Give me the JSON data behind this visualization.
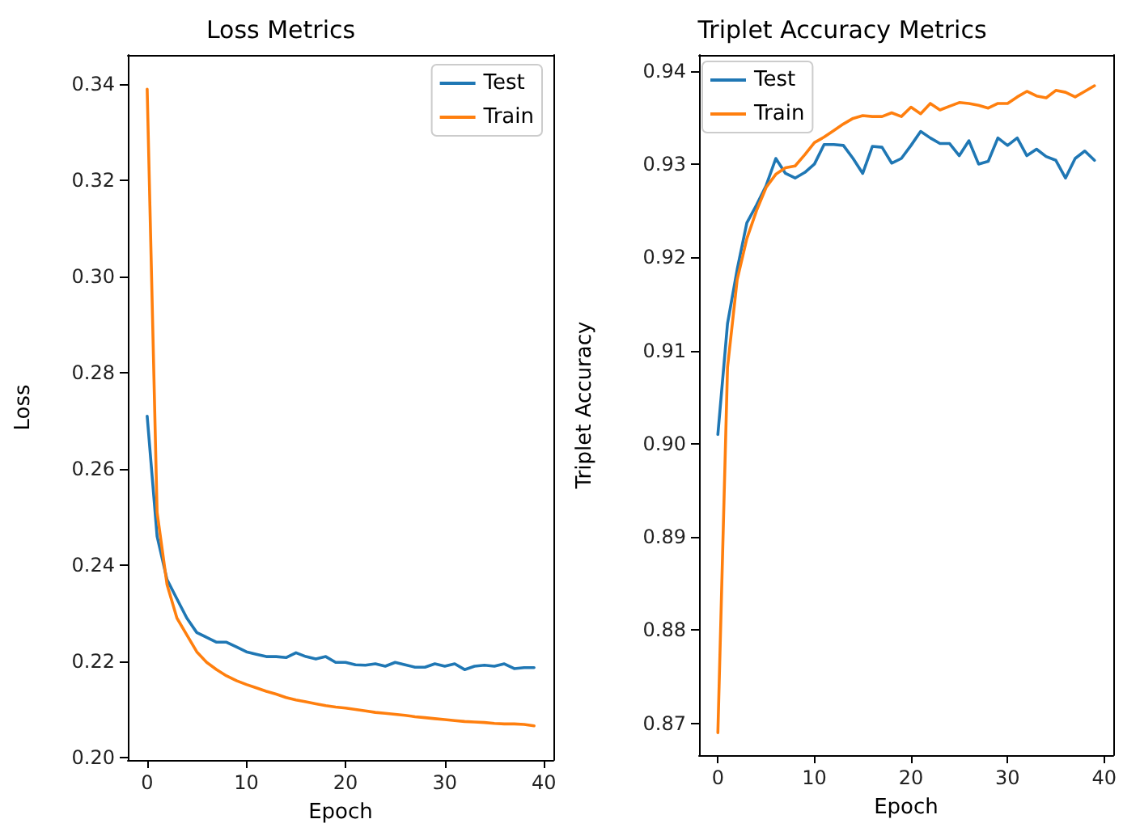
{
  "chart_data": [
    {
      "type": "line",
      "title": "Loss Metrics",
      "xlabel": "Epoch",
      "ylabel": "Loss",
      "x": [
        0,
        1,
        2,
        3,
        4,
        5,
        6,
        7,
        8,
        9,
        10,
        11,
        12,
        13,
        14,
        15,
        16,
        17,
        18,
        19,
        20,
        21,
        22,
        23,
        24,
        25,
        26,
        27,
        28,
        29,
        30,
        31,
        32,
        33,
        34,
        35,
        36,
        37,
        38,
        39
      ],
      "series": [
        {
          "name": "Test",
          "color": "#1f77b4",
          "values": [
            0.271,
            0.246,
            0.237,
            0.233,
            0.229,
            0.226,
            0.225,
            0.224,
            0.224,
            0.223,
            0.222,
            0.2215,
            0.221,
            0.221,
            0.2208,
            0.2218,
            0.221,
            0.2205,
            0.221,
            0.2198,
            0.2198,
            0.2193,
            0.2192,
            0.2195,
            0.219,
            0.2198,
            0.2193,
            0.2188,
            0.2188,
            0.2195,
            0.219,
            0.2195,
            0.2183,
            0.219,
            0.2192,
            0.219,
            0.2195,
            0.2185,
            0.2187,
            0.2187
          ]
        },
        {
          "name": "Train",
          "color": "#ff7f0e",
          "values": [
            0.339,
            0.251,
            0.236,
            0.229,
            0.2255,
            0.222,
            0.2198,
            0.2183,
            0.217,
            0.216,
            0.2152,
            0.2145,
            0.2138,
            0.2132,
            0.2125,
            0.212,
            0.2116,
            0.2112,
            0.2108,
            0.2105,
            0.2103,
            0.21,
            0.2097,
            0.2094,
            0.2092,
            0.209,
            0.2088,
            0.2085,
            0.2083,
            0.2081,
            0.2079,
            0.2077,
            0.2075,
            0.2074,
            0.2073,
            0.2071,
            0.207,
            0.207,
            0.2069,
            0.2066
          ]
        }
      ],
      "xlim": [
        -1.95,
        40.95
      ],
      "xticks": [
        0,
        10,
        20,
        30,
        40
      ],
      "ylim": [
        0.1995,
        0.3461
      ],
      "yticks": [
        {
          "value": 0.2,
          "label": "0.20"
        },
        0.22,
        0.24,
        0.26,
        0.28,
        {
          "value": 0.3,
          "label": "0.30"
        },
        0.32,
        0.34
      ],
      "grid": false,
      "legend": "top right",
      "marker": "none",
      "line_style": "solid"
    },
    {
      "type": "line",
      "title": "Triplet Accuracy Metrics",
      "xlabel": "Epoch",
      "ylabel": "Triplet Accuracy",
      "x": [
        0,
        1,
        2,
        3,
        4,
        5,
        6,
        7,
        8,
        9,
        10,
        11,
        12,
        13,
        14,
        15,
        16,
        17,
        18,
        19,
        20,
        21,
        22,
        23,
        24,
        25,
        26,
        27,
        28,
        29,
        30,
        31,
        32,
        33,
        34,
        35,
        36,
        37,
        38,
        39
      ],
      "series": [
        {
          "name": "Test",
          "color": "#1f77b4",
          "values": [
            0.901,
            0.9129,
            0.9187,
            0.9237,
            0.9256,
            0.9277,
            0.9306,
            0.929,
            0.9285,
            0.9291,
            0.93,
            0.9321,
            0.9321,
            0.932,
            0.9306,
            0.929,
            0.9319,
            0.9318,
            0.9301,
            0.9306,
            0.932,
            0.9335,
            0.9328,
            0.9322,
            0.9322,
            0.9309,
            0.9325,
            0.93,
            0.9303,
            0.9328,
            0.932,
            0.9328,
            0.9309,
            0.9316,
            0.9308,
            0.9304,
            0.9285,
            0.9306,
            0.9314,
            0.9304
          ]
        },
        {
          "name": "Train",
          "color": "#ff7f0e",
          "values": [
            0.869,
            0.9082,
            0.9176,
            0.922,
            0.925,
            0.9275,
            0.9289,
            0.9296,
            0.9298,
            0.931,
            0.9323,
            0.9329,
            0.9336,
            0.9343,
            0.9349,
            0.9352,
            0.9351,
            0.9351,
            0.9355,
            0.9351,
            0.9361,
            0.9354,
            0.9365,
            0.9358,
            0.9362,
            0.9366,
            0.9365,
            0.9363,
            0.936,
            0.9365,
            0.9365,
            0.9372,
            0.9378,
            0.9373,
            0.9371,
            0.9379,
            0.9377,
            0.9372,
            0.9378,
            0.9384
          ]
        }
      ],
      "xlim": [
        -1.95,
        40.95
      ],
      "xticks": [
        0,
        10,
        20,
        30,
        40
      ],
      "ylim": [
        0.8666,
        0.9417
      ],
      "yticks": [
        0.87,
        0.88,
        0.89,
        {
          "value": 0.9,
          "label": "0.90"
        },
        0.91,
        0.92,
        0.93,
        0.94
      ],
      "grid": false,
      "legend": "top left",
      "marker": "none",
      "line_style": "solid"
    }
  ]
}
